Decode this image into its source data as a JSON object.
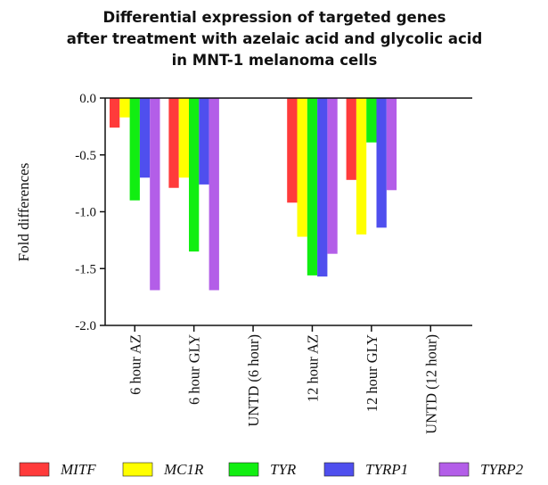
{
  "chart_data": {
    "type": "bar",
    "title": [
      "Differential expression of targeted genes",
      "after treatment with azelaic acid and glycolic acid",
      "in MNT-1 melanoma cells"
    ],
    "ylabel": "Fold differences",
    "xlabel": "",
    "ylim": [
      -2.0,
      0.0
    ],
    "yticks": [
      "0.0",
      "-0.5",
      "-1.0",
      "-1.5",
      "-2.0"
    ],
    "categories": [
      "6 hour AZ",
      "6 hour GLY",
      "UNTD (6 hour)",
      "12 hour AZ",
      "12 hour GLY",
      "UNTD (12 hour)"
    ],
    "series": [
      {
        "name": "MITF",
        "color": "#ff3b3b",
        "values": [
          -0.26,
          -0.79,
          0,
          -0.92,
          -0.72,
          0
        ]
      },
      {
        "name": "MC1R",
        "color": "#ffff00",
        "values": [
          -0.17,
          -0.7,
          0,
          -1.22,
          -1.2,
          0
        ]
      },
      {
        "name": "TYR",
        "color": "#11ee11",
        "values": [
          -0.9,
          -1.35,
          0,
          -1.56,
          -0.39,
          0
        ]
      },
      {
        "name": "TYRP1",
        "color": "#4f4fee",
        "values": [
          -0.7,
          -0.76,
          0,
          -1.57,
          -1.14,
          0
        ]
      },
      {
        "name": "TYRP2",
        "color": "#b35ee8",
        "values": [
          -1.69,
          -1.69,
          0,
          -1.37,
          -0.81,
          0
        ]
      }
    ],
    "grid": false,
    "legend": "bottom"
  }
}
